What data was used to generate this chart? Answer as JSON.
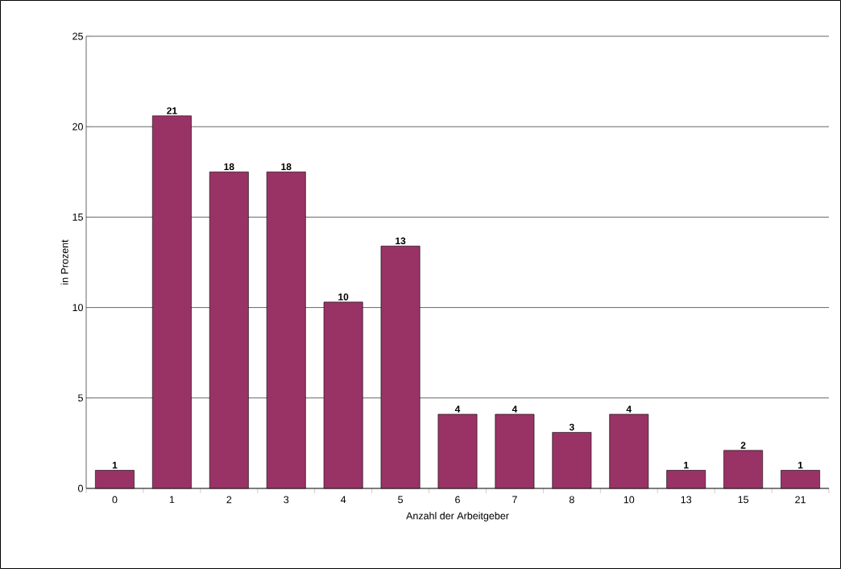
{
  "chart_data": {
    "type": "bar",
    "xlabel": "Anzahl der Arbeitgeber",
    "ylabel": "in Prozent",
    "categories": [
      "0",
      "1",
      "2",
      "3",
      "4",
      "5",
      "6",
      "7",
      "8",
      "10",
      "13",
      "15",
      "21"
    ],
    "values": [
      1.0,
      20.6,
      17.5,
      17.5,
      10.3,
      13.4,
      4.1,
      4.1,
      3.1,
      4.1,
      1.0,
      2.1,
      1.0
    ],
    "value_labels": [
      "1",
      "21",
      "18",
      "18",
      "10",
      "13",
      "4",
      "4",
      "3",
      "4",
      "1",
      "2",
      "1"
    ],
    "color": "#993366",
    "ylim": [
      0,
      25
    ],
    "yticks": [
      0,
      5,
      10,
      15,
      20,
      25
    ],
    "grid": "y"
  }
}
